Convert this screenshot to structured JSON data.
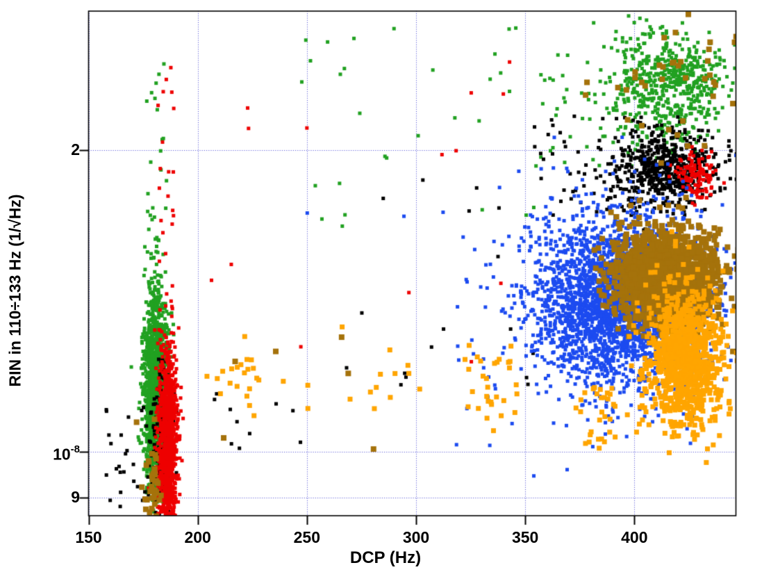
{
  "chart_data": {
    "type": "scatter",
    "title": "",
    "xlabel": "DCP (Hz)",
    "ylabel": "RIN in 110÷133 Hz (1/√Hz)",
    "x_axis": {
      "min": 150,
      "max": 446.5,
      "ticks": [
        150,
        200,
        250,
        300,
        350,
        400
      ],
      "grid": true
    },
    "y_axis": {
      "scale": "log",
      "log_min": -8.064,
      "log_max": -7.56,
      "ticks": [
        {
          "value": 2e-08,
          "label": "2",
          "sup": ""
        },
        {
          "value": 1e-08,
          "label": "10",
          "sup": "-8"
        },
        {
          "value": 9e-09,
          "label": "9",
          "sup": ""
        }
      ],
      "grid": true
    },
    "colors": {
      "green": "#21a121",
      "red": "#ee0000",
      "black": "#000000",
      "blue": "#1c4bf0",
      "orange": "#ffa500",
      "gold": "#a5720b",
      "grid": "#4444d4",
      "axis": "#000000",
      "background": "#ffffff"
    },
    "marker_px": {
      "green": 5,
      "red": 5,
      "black": 5,
      "blue": 5,
      "orange": 7,
      "gold": 8
    },
    "draw_order": [
      "green",
      "black",
      "red",
      "blue",
      "gold",
      "orange"
    ],
    "seed": 1337,
    "clusters": [
      {
        "id": "left-green-core",
        "color": "green",
        "n": 1400,
        "x_mean": 180.5,
        "x_sigma": 2.6,
        "ylog_mean": -7.938,
        "ylog_sigma": 0.052
      },
      {
        "id": "left-red-core",
        "color": "red",
        "n": 1100,
        "x_mean": 186.2,
        "x_sigma": 2.2,
        "ylog_mean": -7.993,
        "ylog_sigma": 0.049
      },
      {
        "id": "left-black",
        "color": "black",
        "n": 220,
        "x_mean": 184.4,
        "x_sigma": 2.8,
        "ylog_mean": -7.996,
        "ylog_sigma": 0.038
      },
      {
        "id": "left-gold",
        "color": "gold",
        "n": 45,
        "x_mean": 178.7,
        "x_sigma": 2.5,
        "ylog_mean": -8.028,
        "ylog_sigma": 0.035
      },
      {
        "id": "right-green",
        "color": "green",
        "n": 560,
        "x_mean": 415.9,
        "x_sigma": 14.0,
        "ylog_mean": -7.634,
        "ylog_sigma": 0.028
      },
      {
        "id": "right-gold-sparse",
        "color": "gold",
        "n": 40,
        "x_mean": 416.5,
        "x_sigma": 18.0,
        "ylog_mean": -7.646,
        "ylog_sigma": 0.038
      },
      {
        "id": "right-black",
        "color": "black",
        "n": 620,
        "x_mean": 414.9,
        "x_sigma": 12.0,
        "ylog_mean": -7.718,
        "ylog_sigma": 0.019
      },
      {
        "id": "right-red",
        "color": "red",
        "n": 130,
        "x_mean": 428.6,
        "x_sigma": 4.5,
        "ylog_mean": -7.724,
        "ylog_sigma": 0.011
      },
      {
        "id": "blue-main",
        "color": "blue",
        "n": 2800,
        "x_mean": 393.6,
        "x_sigma": 19.7,
        "ylog_mean": -7.849,
        "ylog_sigma": 0.04
      },
      {
        "id": "blue-halo",
        "color": "blue",
        "n": 260,
        "x_mean": 393.0,
        "x_sigma": 34.0,
        "ylog_mean": -7.85,
        "ylog_sigma": 0.066
      },
      {
        "id": "gold-dense",
        "color": "gold",
        "n": 1600,
        "x_mean": 414.3,
        "x_sigma": 11.5,
        "ylog_mean": -7.826,
        "ylog_sigma": 0.023
      },
      {
        "id": "orange-right",
        "color": "orange",
        "n": 950,
        "x_mean": 423.5,
        "x_sigma": 8.5,
        "ylog_mean": -7.91,
        "ylog_sigma": 0.035
      },
      {
        "id": "orange-mid-a",
        "color": "orange",
        "n": 14,
        "x_mean": 221.0,
        "x_sigma": 4.0,
        "ylog_mean": -7.925,
        "ylog_sigma": 0.018
      },
      {
        "id": "orange-mid-b",
        "color": "orange",
        "n": 12,
        "x_mean": 286.0,
        "x_sigma": 8.0,
        "ylog_mean": -7.927,
        "ylog_sigma": 0.02
      },
      {
        "id": "orange-mid-c",
        "color": "orange",
        "n": 30,
        "x_mean": 334.0,
        "x_sigma": 7.0,
        "ylog_mean": -7.93,
        "ylog_sigma": 0.025
      }
    ],
    "sparse_regions": [
      {
        "id": "left-green-trail",
        "color": "green",
        "n": 25,
        "x_range": [
          176,
          186
        ],
        "ylog_range": [
          -7.854,
          -7.608
        ]
      },
      {
        "id": "left-red-trail",
        "color": "red",
        "n": 20,
        "x_range": [
          181,
          190
        ],
        "ylog_range": [
          -7.861,
          -7.615
        ]
      },
      {
        "id": "left-black-outliers",
        "color": "black",
        "n": 28,
        "x_range": [
          158,
          178
        ],
        "ylog_range": [
          -8.055,
          -7.958
        ]
      },
      {
        "id": "right-green-halo",
        "color": "green",
        "n": 45,
        "x_range": [
          356,
          412
        ],
        "ylog_range": [
          -7.716,
          -7.587
        ]
      },
      {
        "id": "right-black-halo",
        "color": "black",
        "n": 48,
        "x_range": [
          354,
          412
        ],
        "ylog_range": [
          -7.764,
          -7.66
        ]
      },
      {
        "id": "orange-right-tail",
        "color": "orange",
        "n": 30,
        "x_range": [
          373,
          392
        ],
        "ylog_range": [
          -7.997,
          -7.934
        ]
      },
      {
        "id": "orange-mid-stragglers",
        "color": "orange",
        "n": 10,
        "x_range": [
          197,
          252
        ],
        "ylog_range": [
          -7.99,
          -7.9
        ]
      },
      {
        "id": "mid-green-sparse",
        "color": "green",
        "n": 30,
        "x_range": [
          246,
          355
        ],
        "ylog_range": [
          -7.78,
          -7.57
        ]
      },
      {
        "id": "mid-black-sparse",
        "color": "black",
        "n": 18,
        "x_range": [
          250,
          355
        ],
        "ylog_range": [
          -7.95,
          -7.72
        ]
      },
      {
        "id": "mid-black-low",
        "color": "black",
        "n": 10,
        "x_range": [
          199,
          248
        ],
        "ylog_range": [
          -8.0,
          -7.93
        ]
      },
      {
        "id": "mid-red-sparse",
        "color": "red",
        "n": 14,
        "x_range": [
          200,
          350
        ],
        "ylog_range": [
          -7.93,
          -7.6
        ]
      },
      {
        "id": "mid-blue-sparse",
        "color": "blue",
        "n": 10,
        "x_range": [
          330,
          392
        ],
        "ylog_range": [
          -7.95,
          -7.7
        ]
      },
      {
        "id": "mid-gold-singles",
        "color": "gold",
        "n": 6,
        "x_range": [
          210,
          350
        ],
        "ylog_range": [
          -8.0,
          -7.88
        ]
      }
    ]
  }
}
